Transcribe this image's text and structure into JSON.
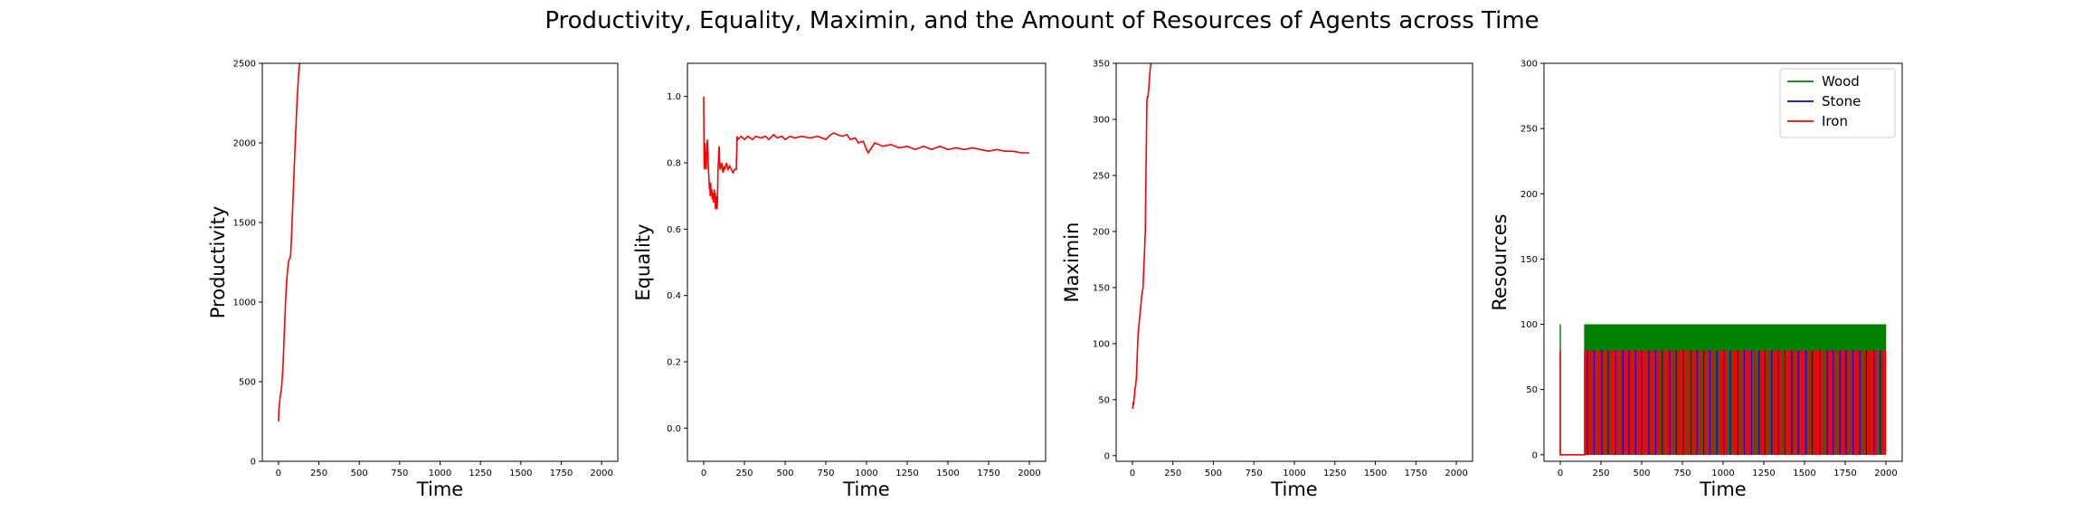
{
  "figure": {
    "title": "Productivity, Equality, Maximin, and the Amount of Resources of Agents across Time"
  },
  "chart_data": [
    {
      "type": "line",
      "title": "",
      "xlabel": "Time",
      "ylabel": "Productivity",
      "xlim": [
        -100,
        2100
      ],
      "ylim": [
        0,
        2500
      ],
      "xticks": [
        0,
        250,
        500,
        750,
        1000,
        1250,
        1500,
        1750,
        2000
      ],
      "yticks": [
        0,
        500,
        1000,
        1500,
        2000,
        2500
      ],
      "grid": false,
      "series": [
        {
          "color": "#ff0000",
          "x": [
            0,
            3,
            8,
            12,
            15,
            20,
            25,
            28,
            32,
            36,
            40,
            44,
            48,
            52,
            56,
            60,
            64,
            68,
            72,
            76,
            80,
            84,
            88,
            92,
            96,
            100,
            104,
            108,
            112,
            116,
            120,
            124,
            128,
            132
          ],
          "y": [
            250,
            330,
            380,
            420,
            430,
            470,
            550,
            600,
            700,
            800,
            900,
            1000,
            1080,
            1150,
            1200,
            1230,
            1260,
            1270,
            1280,
            1300,
            1400,
            1500,
            1600,
            1700,
            1800,
            1900,
            2000,
            2100,
            2200,
            2280,
            2350,
            2420,
            2470,
            2500
          ]
        }
      ]
    },
    {
      "type": "line",
      "title": "",
      "xlabel": "Time",
      "ylabel": "Equality",
      "xlim": [
        -100,
        2100
      ],
      "ylim": [
        -0.1,
        1.1
      ],
      "xticks": [
        0,
        250,
        500,
        750,
        1000,
        1250,
        1500,
        1750,
        2000
      ],
      "yticks": [
        0.0,
        0.2,
        0.4,
        0.6,
        0.8,
        1.0
      ],
      "grid": false,
      "series": [
        {
          "color": "#ff0000",
          "x": [
            0,
            2,
            4,
            6,
            8,
            10,
            12,
            14,
            16,
            18,
            20,
            22,
            25,
            28,
            30,
            32,
            35,
            38,
            40,
            42,
            45,
            48,
            50,
            52,
            55,
            58,
            60,
            62,
            65,
            68,
            70,
            72,
            75,
            78,
            80,
            82,
            85,
            88,
            90,
            92,
            95,
            98,
            100,
            105,
            110,
            115,
            120,
            125,
            130,
            140,
            150,
            160,
            170,
            180,
            190,
            200,
            205,
            210,
            230,
            250,
            270,
            300,
            320,
            350,
            380,
            400,
            430,
            450,
            480,
            500,
            530,
            560,
            600,
            650,
            700,
            750,
            780,
            800,
            820,
            850,
            880,
            900,
            930,
            950,
            980,
            1000,
            1010,
            1050,
            1100,
            1150,
            1200,
            1250,
            1300,
            1350,
            1400,
            1450,
            1500,
            1550,
            1600,
            1650,
            1700,
            1750,
            1800,
            1850,
            1900,
            1950,
            2000
          ],
          "y": [
            1.0,
            0.82,
            0.78,
            0.8,
            0.86,
            0.82,
            0.79,
            0.8,
            0.78,
            0.82,
            0.85,
            0.87,
            0.84,
            0.8,
            0.77,
            0.75,
            0.72,
            0.73,
            0.7,
            0.74,
            0.71,
            0.7,
            0.72,
            0.69,
            0.7,
            0.71,
            0.68,
            0.7,
            0.72,
            0.69,
            0.71,
            0.66,
            0.68,
            0.7,
            0.69,
            0.66,
            0.7,
            0.78,
            0.8,
            0.83,
            0.85,
            0.8,
            0.78,
            0.79,
            0.8,
            0.78,
            0.77,
            0.79,
            0.78,
            0.8,
            0.78,
            0.79,
            0.78,
            0.77,
            0.78,
            0.78,
            0.88,
            0.87,
            0.88,
            0.87,
            0.88,
            0.87,
            0.88,
            0.875,
            0.88,
            0.87,
            0.885,
            0.875,
            0.88,
            0.87,
            0.88,
            0.875,
            0.88,
            0.875,
            0.88,
            0.87,
            0.885,
            0.89,
            0.885,
            0.88,
            0.885,
            0.87,
            0.875,
            0.86,
            0.865,
            0.84,
            0.83,
            0.86,
            0.85,
            0.855,
            0.845,
            0.85,
            0.84,
            0.85,
            0.84,
            0.85,
            0.84,
            0.845,
            0.84,
            0.845,
            0.84,
            0.835,
            0.84,
            0.835,
            0.835,
            0.83,
            0.83
          ]
        }
      ]
    },
    {
      "type": "line",
      "title": "",
      "xlabel": "Time",
      "ylabel": "Maximin",
      "xlim": [
        -100,
        2100
      ],
      "ylim": [
        -5,
        350
      ],
      "xticks": [
        0,
        250,
        500,
        750,
        1000,
        1250,
        1500,
        1750,
        2000
      ],
      "yticks": [
        0,
        50,
        100,
        150,
        200,
        250,
        300,
        350
      ],
      "grid": false,
      "series": [
        {
          "color": "#ff0000",
          "x": [
            0,
            3,
            5,
            8,
            10,
            14,
            16,
            20,
            22,
            25,
            28,
            30,
            33,
            36,
            40,
            43,
            46,
            50,
            53,
            56,
            60,
            63,
            66,
            70,
            73,
            76,
            80,
            82,
            85,
            88,
            90,
            92,
            94,
            96,
            100,
            105,
            110,
            115,
            118
          ],
          "y": [
            43,
            42,
            48,
            45,
            50,
            55,
            60,
            62,
            65,
            70,
            80,
            90,
            100,
            110,
            115,
            120,
            125,
            130,
            135,
            140,
            145,
            147,
            150,
            165,
            175,
            185,
            200,
            230,
            260,
            300,
            315,
            320,
            320,
            320,
            325,
            335,
            345,
            350,
            352
          ]
        }
      ]
    },
    {
      "type": "line",
      "title": "",
      "xlabel": "Time",
      "ylabel": "Resources",
      "xlim": [
        -100,
        2100
      ],
      "ylim": [
        -5,
        300
      ],
      "xticks": [
        0,
        250,
        500,
        750,
        1000,
        1250,
        1500,
        1750,
        2000
      ],
      "yticks": [
        0,
        50,
        100,
        150,
        200,
        250,
        300
      ],
      "grid": false,
      "legend": "upper right",
      "series": [
        {
          "name": "Wood",
          "color": "#008000",
          "baseline": 0,
          "peak": 100
        },
        {
          "name": "Stone",
          "color": "#0000ff",
          "baseline": 0,
          "peak": 80
        },
        {
          "name": "Iron",
          "color": "#ff0000",
          "baseline": 0,
          "peak": 80
        }
      ],
      "note": "Each resource oscillates between 0 and its peak from about t=150 to t=2000 (initial spikes near t=0: Wood 100, Iron 80)."
    }
  ]
}
